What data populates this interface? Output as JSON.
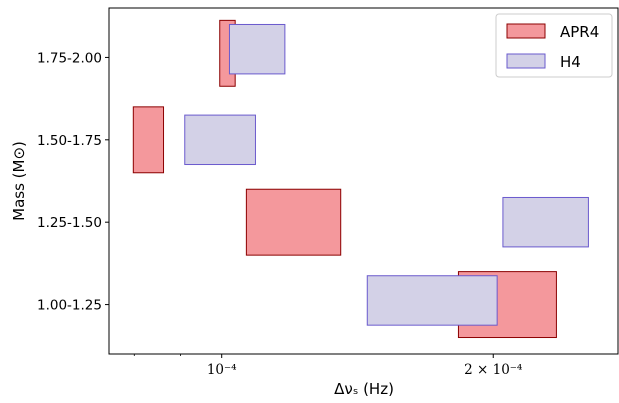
{
  "chart_data": {
    "type": "bar",
    "xlabel": "Δνₛ (Hz)",
    "ylabel": "Mass (M⊙)",
    "x_scale": "log",
    "xlim": [
      7.5e-05,
      0.000275
    ],
    "x_ticks": [
      {
        "value": 0.0001,
        "label": "10⁻⁴"
      },
      {
        "value": 0.0002,
        "label": "2 × 10⁻⁴"
      }
    ],
    "x_minor_ticks": [
      8e-05,
      9e-05,
      0.0003
    ],
    "categories": [
      "1.00-1.25",
      "1.25-1.50",
      "1.50-1.75",
      "1.75-2.00"
    ],
    "legend_position": "top-right",
    "series": [
      {
        "name": "APR4",
        "color": "#f4989c",
        "edge_color": "#8b0000",
        "boxes": [
          {
            "category": "1.75-2.00",
            "x_min": 9.95e-05,
            "x_max": 0.0001035,
            "y_min": 3.65,
            "y_max": 4.45
          },
          {
            "category": "1.50-1.75",
            "x_min": 7.98e-05,
            "x_max": 8.62e-05,
            "y_min": 2.6,
            "y_max": 3.4
          },
          {
            "category": "1.25-1.50",
            "x_min": 0.0001065,
            "x_max": 0.0001355,
            "y_min": 1.6,
            "y_max": 2.4
          },
          {
            "category": "1.00-1.25",
            "x_min": 0.000183,
            "x_max": 0.000235,
            "y_min": 0.6,
            "y_max": 1.4
          }
        ]
      },
      {
        "name": "H4",
        "color": "#d3d1e7",
        "edge_color": "#6a5acd",
        "boxes": [
          {
            "category": "1.75-2.00",
            "x_min": 0.000102,
            "x_max": 0.0001175,
            "y_min": 3.8,
            "y_max": 4.4
          },
          {
            "category": "1.50-1.75",
            "x_min": 9.1e-05,
            "x_max": 0.000109,
            "y_min": 2.7,
            "y_max": 3.3
          },
          {
            "category": "1.25-1.50",
            "x_min": 0.000205,
            "x_max": 0.000255,
            "y_min": 1.7,
            "y_max": 2.3
          },
          {
            "category": "1.00-1.25",
            "x_min": 0.000145,
            "x_max": 0.000202,
            "y_min": 0.75,
            "y_max": 1.35
          }
        ]
      }
    ]
  }
}
